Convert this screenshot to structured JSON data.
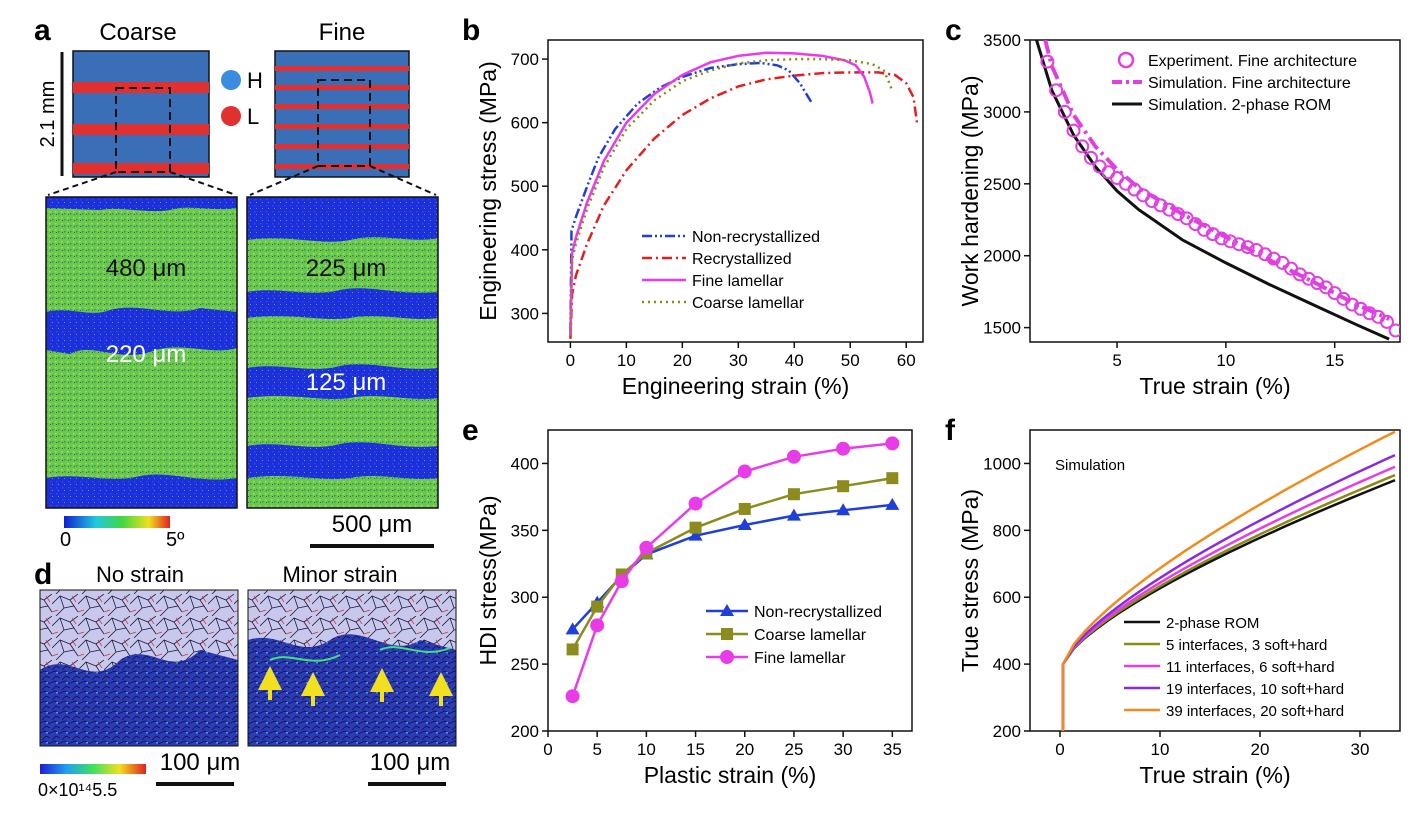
{
  "panels": {
    "a": {
      "letter": "a",
      "coarse_title": "Coarse",
      "fine_title": "Fine",
      "scale_vertical": "2.1 mm",
      "legend_h": "H",
      "legend_l": "L",
      "coarse_hard": "480 μm",
      "coarse_soft": "220 μm",
      "fine_hard": "225 μm",
      "fine_soft": "125 μm",
      "colorbar_min": "0",
      "colorbar_max": "5º",
      "scalebar": "500 μm",
      "colors": {
        "hard": "#3a6fb8",
        "soft": "#e03030",
        "map_blue": "#1c2fd8",
        "map_green": "#6cc84a"
      }
    },
    "d": {
      "letter": "d",
      "left_title": "No strain",
      "right_title": "Minor strain",
      "scalebar_left": "100 μm",
      "scalebar_right": "100 μm",
      "colorbar_label": "0×10¹⁴5.5"
    },
    "b": {
      "letter": "b"
    },
    "c": {
      "letter": "c"
    },
    "e": {
      "letter": "e"
    },
    "f": {
      "letter": "f",
      "annotation": "Simulation"
    }
  },
  "chart_data": [
    {
      "id": "b",
      "type": "line",
      "xlabel": "Engineering strain (%)",
      "ylabel": "Engineering stress (MPa)",
      "xlim": [
        -4,
        63
      ],
      "ylim": [
        255,
        730
      ],
      "xticks": [
        0,
        10,
        20,
        30,
        40,
        50,
        60
      ],
      "yticks": [
        300,
        400,
        500,
        600,
        700
      ],
      "legend_position": "center",
      "series": [
        {
          "name": "Non-recrystallized",
          "color": "#1f3fd8",
          "dash": "dashdotdot",
          "points": [
            [
              0,
              270
            ],
            [
              0.2,
              430
            ],
            [
              1,
              452
            ],
            [
              3,
              500
            ],
            [
              5,
              545
            ],
            [
              8,
              590
            ],
            [
              12,
              630
            ],
            [
              16,
              655
            ],
            [
              20,
              672
            ],
            [
              25,
              686
            ],
            [
              30,
              692
            ],
            [
              34,
              694
            ],
            [
              37,
              690
            ],
            [
              39,
              682
            ],
            [
              41,
              662
            ],
            [
              42.5,
              640
            ],
            [
              43.2,
              630
            ]
          ]
        },
        {
          "name": "Recrystallized",
          "color": "#e02020",
          "dash": "dashdot",
          "points": [
            [
              0,
              260
            ],
            [
              0.3,
              330
            ],
            [
              1,
              360
            ],
            [
              3,
              410
            ],
            [
              6,
              470
            ],
            [
              10,
              525
            ],
            [
              15,
              575
            ],
            [
              20,
              612
            ],
            [
              25,
              638
            ],
            [
              30,
              657
            ],
            [
              35,
              668
            ],
            [
              40,
              674
            ],
            [
              45,
              678
            ],
            [
              50,
              679
            ],
            [
              55,
              679
            ],
            [
              58,
              675
            ],
            [
              60,
              662
            ],
            [
              61.3,
              640
            ],
            [
              62,
              595
            ]
          ]
        },
        {
          "name": "Fine lamellar",
          "color": "#e83ce8",
          "dash": "solid",
          "points": [
            [
              0,
              265
            ],
            [
              0.3,
              395
            ],
            [
              1,
              420
            ],
            [
              3,
              475
            ],
            [
              6,
              540
            ],
            [
              10,
              600
            ],
            [
              15,
              645
            ],
            [
              20,
              675
            ],
            [
              25,
              695
            ],
            [
              30,
              705
            ],
            [
              35,
              710
            ],
            [
              40,
              709
            ],
            [
              45,
              705
            ],
            [
              49,
              698
            ],
            [
              51,
              690
            ],
            [
              52.5,
              672
            ],
            [
              53.5,
              648
            ],
            [
              54,
              630
            ]
          ]
        },
        {
          "name": "Coarse lamellar",
          "color": "#8a8a14",
          "dash": "dotted",
          "points": [
            [
              0,
              265
            ],
            [
              0.3,
              385
            ],
            [
              1,
              410
            ],
            [
              3,
              465
            ],
            [
              6,
              530
            ],
            [
              10,
              590
            ],
            [
              15,
              635
            ],
            [
              20,
              665
            ],
            [
              25,
              682
            ],
            [
              30,
              693
            ],
            [
              35,
              698
            ],
            [
              40,
              700
            ],
            [
              45,
              700
            ],
            [
              50,
              698
            ],
            [
              54,
              692
            ],
            [
              56,
              682
            ],
            [
              57,
              662
            ],
            [
              57.5,
              650
            ]
          ]
        }
      ]
    },
    {
      "id": "c",
      "type": "line",
      "xlabel": "True strain (%)",
      "ylabel": "Work hardening (MPa)",
      "xlim": [
        1,
        18
      ],
      "ylim": [
        1400,
        3500
      ],
      "xticks": [
        5,
        10,
        15
      ],
      "yticks": [
        1500,
        2000,
        2500,
        3000,
        3500
      ],
      "legend_position": "top-right",
      "series": [
        {
          "name": "Experiment. Fine architecture",
          "color": "#e040e0",
          "style": "markers-circle",
          "points": [
            [
              1.8,
              3350
            ],
            [
              2.2,
              3150
            ],
            [
              2.6,
              3000
            ],
            [
              3.0,
              2870
            ],
            [
              3.4,
              2760
            ],
            [
              3.8,
              2680
            ],
            [
              4.2,
              2620
            ],
            [
              4.6,
              2580
            ],
            [
              5.0,
              2540
            ],
            [
              5.4,
              2500
            ],
            [
              5.8,
              2460
            ],
            [
              6.2,
              2420
            ],
            [
              6.6,
              2380
            ],
            [
              7.0,
              2350
            ],
            [
              7.4,
              2320
            ],
            [
              7.8,
              2290
            ],
            [
              8.2,
              2260
            ],
            [
              8.6,
              2220
            ],
            [
              9.0,
              2180
            ],
            [
              9.4,
              2150
            ],
            [
              9.8,
              2120
            ],
            [
              10.2,
              2100
            ],
            [
              10.6,
              2080
            ],
            [
              11.0,
              2060
            ],
            [
              11.4,
              2040
            ],
            [
              11.8,
              2010
            ],
            [
              12.2,
              1980
            ],
            [
              12.6,
              1950
            ],
            [
              13.0,
              1910
            ],
            [
              13.4,
              1870
            ],
            [
              13.8,
              1840
            ],
            [
              14.2,
              1810
            ],
            [
              14.6,
              1780
            ],
            [
              15.0,
              1740
            ],
            [
              15.4,
              1700
            ],
            [
              15.8,
              1660
            ],
            [
              16.2,
              1630
            ],
            [
              16.6,
              1600
            ],
            [
              17.0,
              1575
            ],
            [
              17.4,
              1540
            ],
            [
              17.8,
              1480
            ]
          ]
        },
        {
          "name": "Simulation. Fine architecture",
          "color": "#e040e0",
          "style": "dashdot",
          "points": [
            [
              1.7,
              3500
            ],
            [
              2,
              3320
            ],
            [
              3,
              2980
            ],
            [
              4,
              2760
            ],
            [
              5,
              2600
            ],
            [
              6,
              2470
            ],
            [
              8,
              2290
            ],
            [
              10,
              2130
            ],
            [
              12,
              1970
            ],
            [
              14,
              1820
            ],
            [
              16,
              1660
            ],
            [
              17.5,
              1560
            ]
          ]
        },
        {
          "name": "Simulation. 2-phase ROM",
          "color": "#111111",
          "style": "solid",
          "points": [
            [
              1.3,
              3500
            ],
            [
              2,
              3150
            ],
            [
              3,
              2840
            ],
            [
              4,
              2620
            ],
            [
              5,
              2450
            ],
            [
              6,
              2320
            ],
            [
              8,
              2110
            ],
            [
              10,
              1950
            ],
            [
              12,
              1800
            ],
            [
              14,
              1660
            ],
            [
              16,
              1520
            ],
            [
              17.5,
              1420
            ]
          ]
        }
      ]
    },
    {
      "id": "e",
      "type": "line",
      "xlabel": "Plastic strain (%)",
      "ylabel": "HDI stress(MPa)",
      "xlim": [
        0,
        37
      ],
      "ylim": [
        200,
        425
      ],
      "xticks": [
        0,
        5,
        10,
        15,
        20,
        25,
        30,
        35
      ],
      "xtick_labels": [
        "0",
        "5",
        "10",
        "15",
        "20",
        "25",
        "30",
        "35"
      ],
      "yticks": [
        200,
        250,
        300,
        350,
        400
      ],
      "legend_position": "center-right",
      "series": [
        {
          "name": "Non-recrystallized",
          "color": "#1f3fd8",
          "marker": "triangle",
          "points": [
            [
              2.5,
              276
            ],
            [
              5,
              296
            ],
            [
              7.5,
              316
            ],
            [
              10,
              332
            ],
            [
              15,
              346
            ],
            [
              20,
              354
            ],
            [
              25,
              361
            ],
            [
              30,
              365
            ],
            [
              35,
              369
            ]
          ]
        },
        {
          "name": "Coarse lamellar",
          "color": "#8c8c1e",
          "marker": "square",
          "points": [
            [
              2.5,
              261
            ],
            [
              5,
              293
            ],
            [
              7.5,
              317
            ],
            [
              10,
              333
            ],
            [
              15,
              352
            ],
            [
              20,
              366
            ],
            [
              25,
              377
            ],
            [
              30,
              383
            ],
            [
              35,
              389
            ]
          ]
        },
        {
          "name": "Fine lamellar",
          "color": "#e83ce8",
          "marker": "circle",
          "points": [
            [
              2.5,
              226
            ],
            [
              5,
              279
            ],
            [
              7.5,
              312
            ],
            [
              10,
              337
            ],
            [
              15,
              370
            ],
            [
              20,
              394
            ],
            [
              25,
              405
            ],
            [
              30,
              411
            ],
            [
              35,
              415
            ]
          ]
        }
      ]
    },
    {
      "id": "f",
      "type": "line",
      "xlabel": "True strain (%)",
      "ylabel": "True stress (MPa)",
      "xlim": [
        -3,
        34
      ],
      "ylim": [
        200,
        1100
      ],
      "xticks": [
        0,
        10,
        20,
        30
      ],
      "yticks": [
        200,
        400,
        600,
        800,
        1000
      ],
      "legend_position": "bottom-right",
      "series": [
        {
          "name": "2-phase ROM",
          "color": "#111111",
          "end": 950
        },
        {
          "name": "5 interfaces, 3 soft+hard",
          "color": "#8a8a14",
          "end": 965
        },
        {
          "name": "11 interfaces, 6 soft+hard",
          "color": "#e83ce8",
          "end": 990
        },
        {
          "name": "19 interfaces, 10 soft+hard",
          "color": "#8a2be2",
          "end": 1025
        },
        {
          "name": "39 interfaces, 20 soft+hard",
          "color": "#f08c1e",
          "end": 1095
        }
      ],
      "curve_start": {
        "x": 0.3,
        "y_base": 200,
        "y_yield": 400
      },
      "curve_end_x": 33.5
    }
  ]
}
